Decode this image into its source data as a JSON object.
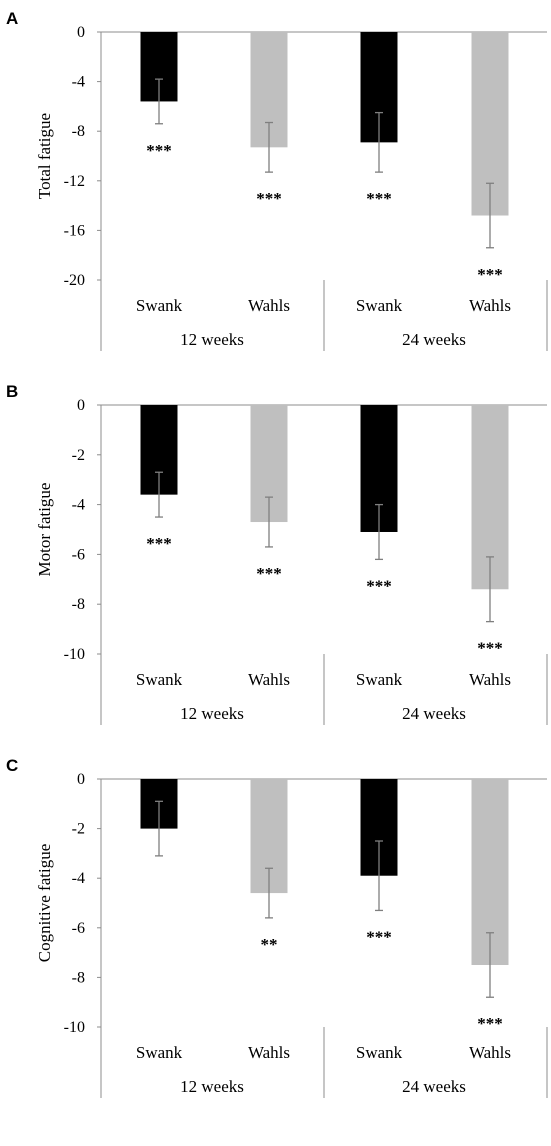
{
  "colors": {
    "black_bar": "#000000",
    "gray_bar": "#bfbfbf",
    "error_bar": "#7f7f7f",
    "axis": "#8c8c8c"
  },
  "chart_data": [
    {
      "panel": "A",
      "type": "bar",
      "ylabel": "Total fatigue",
      "ylim": [
        -20,
        0
      ],
      "yticks": [
        "0",
        "-4",
        "-8",
        "-12",
        "-16",
        "-20"
      ],
      "ytick_values": [
        0,
        -4,
        -8,
        -12,
        -16,
        -20
      ],
      "categories": [
        "Swank",
        "Wahls",
        "Swank",
        "Wahls"
      ],
      "groups": [
        "12 weeks",
        "24 weeks"
      ],
      "values": [
        -5.6,
        -9.3,
        -8.9,
        -14.8
      ],
      "errors": [
        1.8,
        2.0,
        2.4,
        2.6
      ],
      "significance": [
        "***",
        "***",
        "***",
        "***"
      ],
      "bar_colors": [
        "black",
        "gray",
        "black",
        "gray"
      ],
      "grid": false
    },
    {
      "panel": "B",
      "type": "bar",
      "ylabel": "Motor fatigue",
      "ylim": [
        -10,
        0
      ],
      "yticks": [
        "0",
        "-2",
        "-4",
        "-6",
        "-8",
        "-10"
      ],
      "ytick_values": [
        0,
        -2,
        -4,
        -6,
        -8,
        -10
      ],
      "categories": [
        "Swank",
        "Wahls",
        "Swank",
        "Wahls"
      ],
      "groups": [
        "12 weeks",
        "24 weeks"
      ],
      "values": [
        -3.6,
        -4.7,
        -5.1,
        -7.4
      ],
      "errors": [
        0.9,
        1.0,
        1.1,
        1.3
      ],
      "significance": [
        "***",
        "***",
        "***",
        "***"
      ],
      "bar_colors": [
        "black",
        "gray",
        "black",
        "gray"
      ],
      "grid": false
    },
    {
      "panel": "C",
      "type": "bar",
      "ylabel": "Cognitive fatigue",
      "ylim": [
        -10,
        0
      ],
      "yticks": [
        "0",
        "-2",
        "-4",
        "-6",
        "-8",
        "-10"
      ],
      "ytick_values": [
        0,
        -2,
        -4,
        -6,
        -8,
        -10
      ],
      "categories": [
        "Swank",
        "Wahls",
        "Swank",
        "Wahls"
      ],
      "groups": [
        "12 weeks",
        "24 weeks"
      ],
      "values": [
        -2.0,
        -4.6,
        -3.9,
        -7.5
      ],
      "errors": [
        1.1,
        1.0,
        1.4,
        1.3
      ],
      "significance": [
        "",
        "**",
        "***",
        "***"
      ],
      "bar_colors": [
        "black",
        "gray",
        "black",
        "gray"
      ],
      "grid": false
    }
  ]
}
